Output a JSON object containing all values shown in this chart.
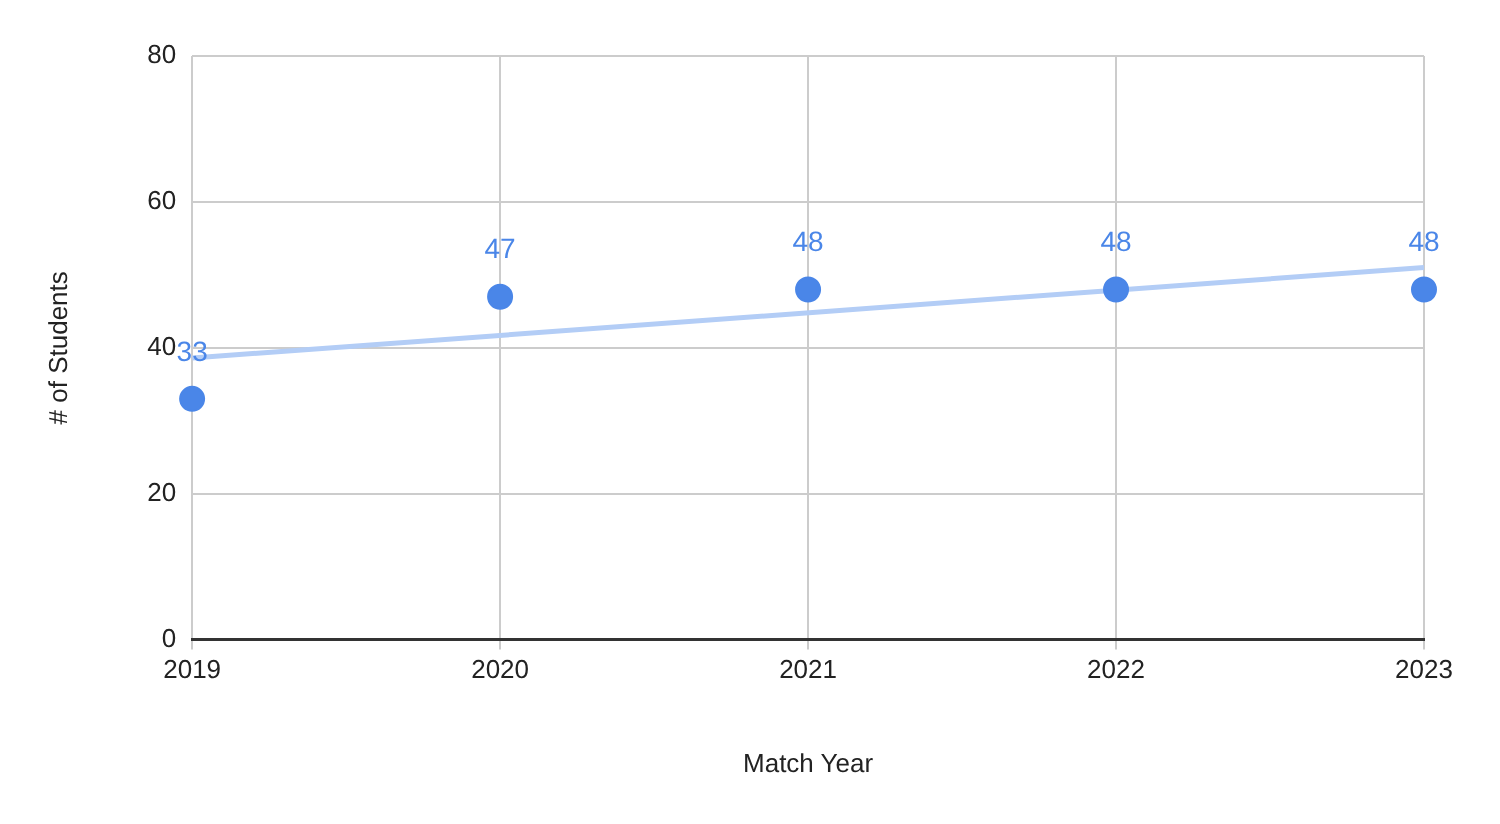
{
  "chart_data": {
    "type": "scatter",
    "xlabel": "Match Year",
    "ylabel": "# of Students",
    "x": [
      2019,
      2020,
      2021,
      2022,
      2023
    ],
    "series": [
      {
        "type": "scatter",
        "color": "#4a86e8",
        "marker": "circle",
        "values": [
          33,
          47,
          48,
          48,
          48
        ],
        "value_labels": [
          "33",
          "47",
          "48",
          "48",
          "48"
        ]
      },
      {
        "type": "line",
        "color": "#b3cdf6",
        "marker": "none",
        "x": [
          2019,
          2023
        ],
        "values": [
          38.6,
          51.0
        ]
      }
    ],
    "xlim": [
      2019,
      2023
    ],
    "xticks": [
      2019,
      2020,
      2021,
      2022,
      2023
    ],
    "ylim": [
      0,
      80
    ],
    "yticks": [
      0,
      20,
      40,
      60,
      80
    ],
    "grid": true,
    "legend": false
  }
}
